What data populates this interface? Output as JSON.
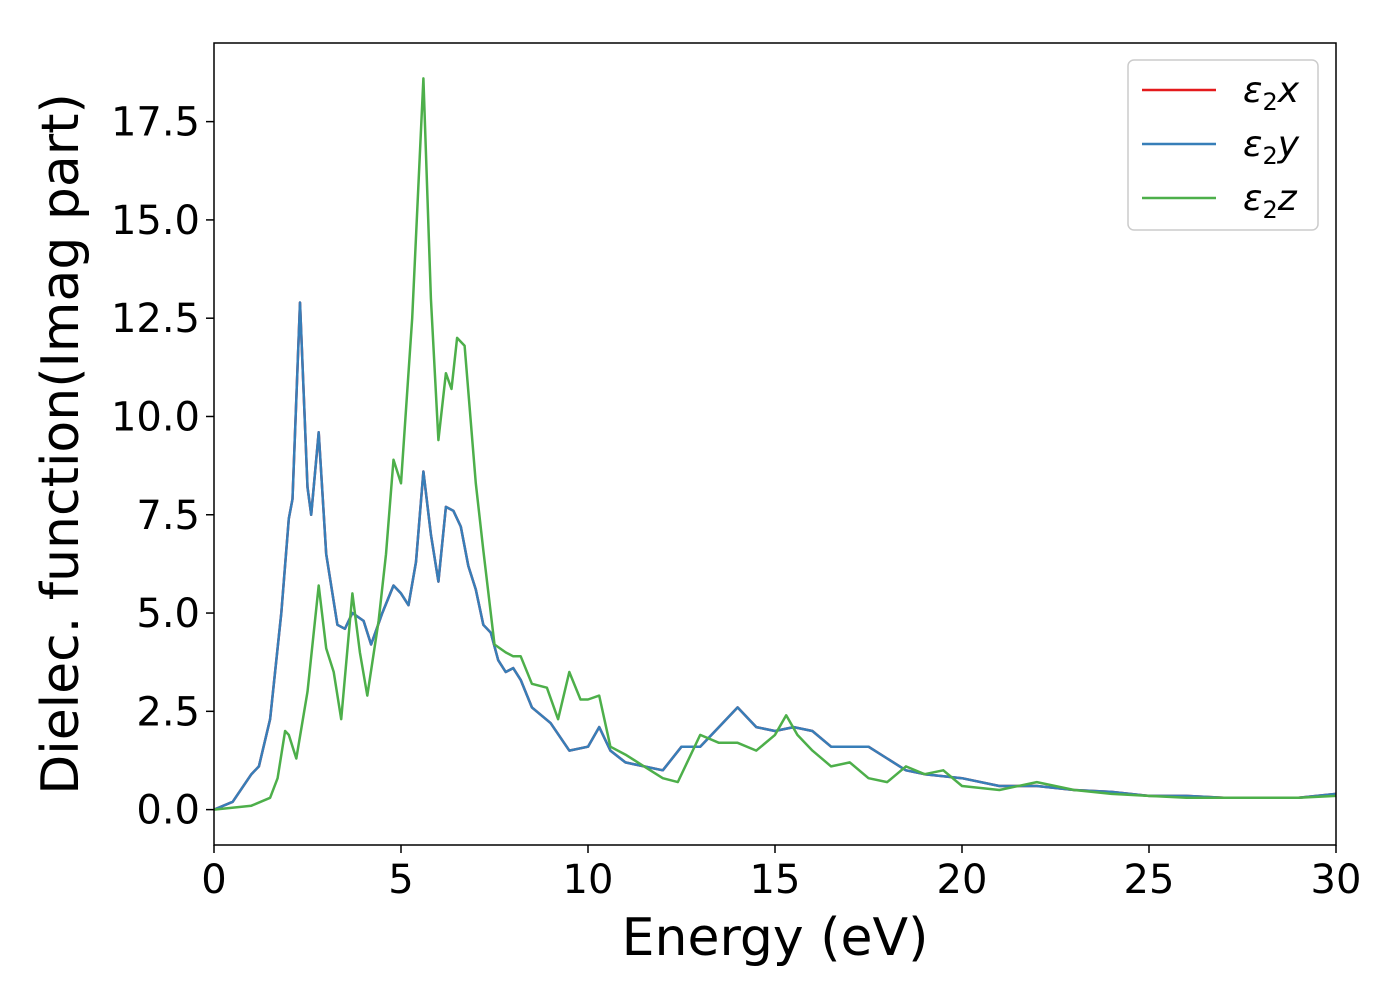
{
  "chart_data": {
    "type": "line",
    "xlabel": "Energy (eV)",
    "ylabel": "Dielec. function(Imag part)",
    "xlim": [
      0,
      30
    ],
    "ylim": [
      -0.9,
      19.5
    ],
    "xticks": [
      0,
      5,
      10,
      15,
      20,
      25,
      30
    ],
    "xtick_labels": [
      "0",
      "5",
      "10",
      "15",
      "20",
      "25",
      "30"
    ],
    "yticks": [
      0.0,
      2.5,
      5.0,
      7.5,
      10.0,
      12.5,
      15.0,
      17.5
    ],
    "ytick_labels": [
      "0.0",
      "2.5",
      "5.0",
      "7.5",
      "10.0",
      "12.5",
      "15.0",
      "17.5"
    ],
    "grid": false,
    "legend_position": "top-right",
    "series": [
      {
        "name": "ε₂x",
        "base": "ε",
        "sub": "2",
        "comp": "x",
        "color": "#e41a1c",
        "x": [
          0,
          0.5,
          1.0,
          1.2,
          1.5,
          1.8,
          2.0,
          2.1,
          2.3,
          2.5,
          2.6,
          2.8,
          3.0,
          3.3,
          3.5,
          3.7,
          4.0,
          4.2,
          4.5,
          4.8,
          5.0,
          5.2,
          5.4,
          5.6,
          5.8,
          6.0,
          6.2,
          6.4,
          6.6,
          6.8,
          7.0,
          7.2,
          7.4,
          7.6,
          7.8,
          8.0,
          8.2,
          8.5,
          9.0,
          9.5,
          10.0,
          10.3,
          10.6,
          11.0,
          11.5,
          12.0,
          12.5,
          13.0,
          13.5,
          14.0,
          14.5,
          15.0,
          15.5,
          16.0,
          16.5,
          17.0,
          17.5,
          18.0,
          18.5,
          19.0,
          20.0,
          21.0,
          22.0,
          23.0,
          24.0,
          25.0,
          26.0,
          27.0,
          28.0,
          29.0,
          30.0
        ],
        "values": [
          0.0,
          0.2,
          0.9,
          1.1,
          2.3,
          5.0,
          7.4,
          7.9,
          12.9,
          8.2,
          7.5,
          9.6,
          6.5,
          4.7,
          4.6,
          5.0,
          4.8,
          4.2,
          5.0,
          5.7,
          5.5,
          5.2,
          6.3,
          8.6,
          7.0,
          5.8,
          7.7,
          7.6,
          7.2,
          6.2,
          5.6,
          4.7,
          4.5,
          3.8,
          3.5,
          3.6,
          3.3,
          2.6,
          2.2,
          1.5,
          1.6,
          2.1,
          1.5,
          1.2,
          1.1,
          1.0,
          1.6,
          1.6,
          2.1,
          2.6,
          2.1,
          2.0,
          2.1,
          2.0,
          1.6,
          1.6,
          1.6,
          1.3,
          1.0,
          0.9,
          0.8,
          0.6,
          0.6,
          0.5,
          0.45,
          0.35,
          0.35,
          0.3,
          0.3,
          0.3,
          0.4
        ]
      },
      {
        "name": "ε₂y",
        "base": "ε",
        "sub": "2",
        "comp": "y",
        "color": "#377eb8",
        "x": [
          0,
          0.5,
          1.0,
          1.2,
          1.5,
          1.8,
          2.0,
          2.1,
          2.3,
          2.5,
          2.6,
          2.8,
          3.0,
          3.3,
          3.5,
          3.7,
          4.0,
          4.2,
          4.5,
          4.8,
          5.0,
          5.2,
          5.4,
          5.6,
          5.8,
          6.0,
          6.2,
          6.4,
          6.6,
          6.8,
          7.0,
          7.2,
          7.4,
          7.6,
          7.8,
          8.0,
          8.2,
          8.5,
          9.0,
          9.5,
          10.0,
          10.3,
          10.6,
          11.0,
          11.5,
          12.0,
          12.5,
          13.0,
          13.5,
          14.0,
          14.5,
          15.0,
          15.5,
          16.0,
          16.5,
          17.0,
          17.5,
          18.0,
          18.5,
          19.0,
          20.0,
          21.0,
          22.0,
          23.0,
          24.0,
          25.0,
          26.0,
          27.0,
          28.0,
          29.0,
          30.0
        ],
        "values": [
          0.0,
          0.2,
          0.9,
          1.1,
          2.3,
          5.0,
          7.4,
          7.9,
          12.9,
          8.2,
          7.5,
          9.6,
          6.5,
          4.7,
          4.6,
          5.0,
          4.8,
          4.2,
          5.0,
          5.7,
          5.5,
          5.2,
          6.3,
          8.6,
          7.0,
          5.8,
          7.7,
          7.6,
          7.2,
          6.2,
          5.6,
          4.7,
          4.5,
          3.8,
          3.5,
          3.6,
          3.3,
          2.6,
          2.2,
          1.5,
          1.6,
          2.1,
          1.5,
          1.2,
          1.1,
          1.0,
          1.6,
          1.6,
          2.1,
          2.6,
          2.1,
          2.0,
          2.1,
          2.0,
          1.6,
          1.6,
          1.6,
          1.3,
          1.0,
          0.9,
          0.8,
          0.6,
          0.6,
          0.5,
          0.45,
          0.35,
          0.35,
          0.3,
          0.3,
          0.3,
          0.4
        ]
      },
      {
        "name": "ε₂z",
        "base": "ε",
        "sub": "2",
        "comp": "z",
        "color": "#4daf4a",
        "x": [
          0,
          1.0,
          1.5,
          1.7,
          1.9,
          2.0,
          2.2,
          2.5,
          2.8,
          3.0,
          3.2,
          3.4,
          3.7,
          3.9,
          4.1,
          4.4,
          4.6,
          4.8,
          5.0,
          5.3,
          5.6,
          5.8,
          6.0,
          6.2,
          6.35,
          6.5,
          6.7,
          7.0,
          7.2,
          7.5,
          7.8,
          8.0,
          8.2,
          8.5,
          8.9,
          9.2,
          9.5,
          9.8,
          10.0,
          10.3,
          10.6,
          11.0,
          11.5,
          12.0,
          12.4,
          13.0,
          13.5,
          14.0,
          14.5,
          15.0,
          15.3,
          15.6,
          16.0,
          16.5,
          17.0,
          17.5,
          18.0,
          18.5,
          19.0,
          19.5,
          20.0,
          21.0,
          22.0,
          23.0,
          24.0,
          25.0,
          26.0,
          27.0,
          28.0,
          29.0,
          30.0
        ],
        "values": [
          0.0,
          0.1,
          0.3,
          0.8,
          2.0,
          1.9,
          1.3,
          3.0,
          5.7,
          4.1,
          3.5,
          2.3,
          5.5,
          4.0,
          2.9,
          4.8,
          6.5,
          8.9,
          8.3,
          12.5,
          18.6,
          13.0,
          9.4,
          11.1,
          10.7,
          12.0,
          11.8,
          8.3,
          6.6,
          4.2,
          4.0,
          3.9,
          3.9,
          3.2,
          3.1,
          2.3,
          3.5,
          2.8,
          2.8,
          2.9,
          1.6,
          1.4,
          1.1,
          0.8,
          0.7,
          1.9,
          1.7,
          1.7,
          1.5,
          1.9,
          2.4,
          1.9,
          1.5,
          1.1,
          1.2,
          0.8,
          0.7,
          1.1,
          0.9,
          1.0,
          0.6,
          0.5,
          0.7,
          0.5,
          0.4,
          0.35,
          0.3,
          0.3,
          0.3,
          0.3,
          0.35
        ]
      }
    ]
  }
}
